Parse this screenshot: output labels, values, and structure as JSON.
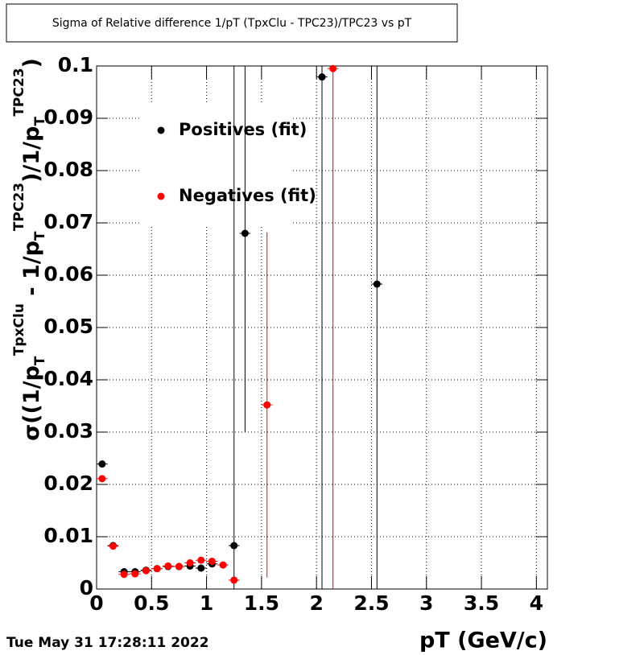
{
  "chart_data": {
    "type": "scatter",
    "title": "Sigma of Relative difference 1/pT (TpxClu - TPC23)/TPC23 vs pT",
    "x_label": "pT (GeV/c)",
    "y_label_parts": [
      "σ((1/p",
      "T",
      "TpxClu",
      " - 1/p",
      "T",
      "TPC23",
      ")/1/p",
      "T",
      "TPC23",
      ")"
    ],
    "timestamp": "Tue May 31 17:28:11 2022",
    "xlim": [
      0,
      4.1
    ],
    "ylim": [
      0,
      0.1
    ],
    "xticks": [
      0,
      0.5,
      1,
      1.5,
      2,
      2.5,
      3,
      3.5,
      4
    ],
    "yticks": [
      0,
      0.01,
      0.02,
      0.03,
      0.04,
      0.05,
      0.06,
      0.07,
      0.08,
      0.09,
      0.1
    ],
    "grid": true,
    "legend": "upper-left",
    "x_error": 0.05,
    "series": [
      {
        "name": "Positives (fit)",
        "color": "#000000",
        "x": [
          0.05,
          0.15,
          0.25,
          0.35,
          0.45,
          0.55,
          0.65,
          0.75,
          0.85,
          0.95,
          1.05,
          1.25,
          1.35,
          2.05,
          2.55
        ],
        "values": [
          0.0239,
          0.0083,
          0.0033,
          0.0033,
          0.0036,
          0.0039,
          0.0043,
          0.0043,
          0.0044,
          0.004,
          0.0048,
          0.0083,
          0.068,
          0.0979,
          0.0583
        ],
        "errors": [
          0.0004,
          0.0005,
          0.0003,
          0.0003,
          0.0003,
          0.0003,
          0.0003,
          0.0003,
          0.0003,
          0.0003,
          0.0004,
          0.1,
          0.038,
          0.1,
          0.1
        ]
      },
      {
        "name": "Negatives (fit)",
        "color": "#ff0000",
        "x": [
          0.05,
          0.15,
          0.25,
          0.35,
          0.45,
          0.55,
          0.65,
          0.75,
          0.85,
          0.95,
          1.05,
          1.15,
          1.25,
          1.55,
          2.15
        ],
        "values": [
          0.0211,
          0.0082,
          0.0028,
          0.0029,
          0.0035,
          0.0039,
          0.0044,
          0.0043,
          0.005,
          0.0055,
          0.0053,
          0.0046,
          0.0017,
          0.0352,
          0.0995
        ],
        "errors": [
          0.0004,
          0.0005,
          0.0003,
          0.0003,
          0.0003,
          0.0003,
          0.0003,
          0.0003,
          0.0004,
          0.0004,
          0.0004,
          0.0004,
          0.0004,
          0.033,
          0.1
        ]
      }
    ]
  }
}
